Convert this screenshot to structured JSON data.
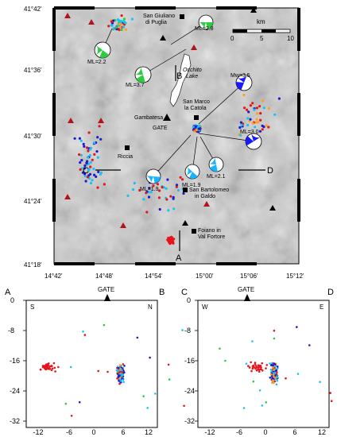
{
  "map": {
    "lat_labels": [
      "41°42'",
      "41°36'",
      "41°30'",
      "41°24'",
      "41°18'"
    ],
    "lon_labels": [
      "14°42'",
      "14°48'",
      "14°54'",
      "15°00'",
      "15°06'",
      "15°12'"
    ],
    "places": {
      "san_giuliano": [
        "San Giuliano",
        "di Puglia"
      ],
      "occhito": [
        "Occhito",
        "Lake"
      ],
      "san_marco": [
        "San Marco",
        "la Catola"
      ],
      "gambatesa": "Gambatesa",
      "gate": "GATE",
      "riccia": "Riccia",
      "san_bartolomeo": [
        "San Bartolomeo",
        "in Galdo"
      ],
      "foiano": [
        "Foiano in",
        "Val Fortore"
      ]
    },
    "scale_bar": {
      "unit": "km",
      "ticks": [
        "0",
        "5",
        "10"
      ]
    },
    "section_letters": {
      "A": "A",
      "B": "B",
      "C": "C",
      "D": "D"
    },
    "mechanisms": [
      {
        "label": "ML=2.8",
        "color": "#2ecc40"
      },
      {
        "label": "ML=2.2",
        "color": "#2ecc40"
      },
      {
        "label": "ML=3.7",
        "color": "#2ecc40"
      },
      {
        "label": "Mw=3.5",
        "color": "#1a1aff"
      },
      {
        "label": "ML=3.0",
        "color": "#1a1aff"
      },
      {
        "label": "ML=1.9",
        "color": "#19b4ff"
      },
      {
        "label": "ML=1.9",
        "color": "#19b4ff"
      },
      {
        "label": "ML=2.1",
        "color": "#19b4ff"
      }
    ]
  },
  "section_ab": {
    "corner_left": "A",
    "corner_right": "B",
    "dir_left": "S",
    "dir_right": "N",
    "station": "GATE",
    "x_ticks": [
      "-12",
      "-6",
      "0",
      "6",
      "12"
    ],
    "y_ticks": [
      "0",
      "-8",
      "-16",
      "-24",
      "-32"
    ]
  },
  "section_cd": {
    "corner_left": "C",
    "corner_right": "D",
    "dir_left": "W",
    "dir_right": "E",
    "station": "GATE",
    "x_ticks": [
      "-12",
      "-6",
      "0",
      "6",
      "12"
    ],
    "y_ticks": [
      "0",
      "-8",
      "-16",
      "-24",
      "-32"
    ]
  },
  "colors": {
    "red": "#e8141b",
    "blue": "#1b1bd0",
    "cyan": "#19c2f0",
    "green": "#2ecc40",
    "orange": "#ff9f1a"
  }
}
